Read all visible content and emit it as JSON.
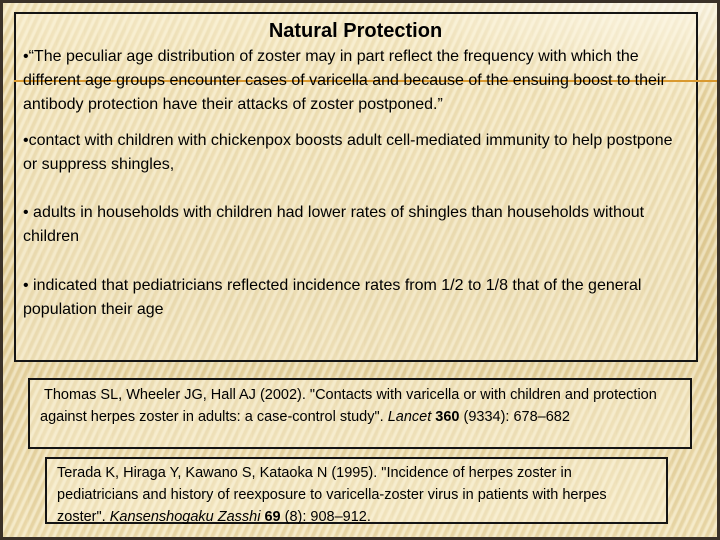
{
  "slide": {
    "title": "Natural Protection",
    "bullets": [
      {
        "text": "•“The peculiar age distribution of zoster may in part reflect the frequency with which the different age groups encounter cases of varicella and because of the ensuing boost to their antibody protection have their attacks of zoster postponed.”"
      },
      {
        "text": "•contact with children with chickenpox boosts adult cell-mediated immunity to help postpone or suppress shingles,"
      },
      {
        "text": "• adults in households with children had lower rates of shingles than households without children"
      },
      {
        "text": "• indicated that pediatricians reflected incidence rates from 1/2 to 1/8 that of the general population their age"
      }
    ],
    "citations": [
      {
        "pre": "Thomas SL, Wheeler JG, Hall AJ (2002). \"Contacts with varicella or with children and protection against herpes zoster in adults: a case-control study\". ",
        "journal": "Lancet ",
        "volume": "360",
        "rest": " (9334): 678–682"
      },
      {
        "pre": "Terada K, Hiraga Y, Kawano S, Kataoka N (1995). \"Incidence of herpes zoster in pediatricians and history of reexposure to varicella-zoster virus in patients with herpes zoster\". ",
        "journal": "Kansenshogaku Zasshi ",
        "volume": "69",
        "rest": " (8): 908–912."
      }
    ],
    "colors": {
      "accent_line": "#d9992f",
      "background": "#e5d099",
      "box_border": "#141414",
      "frame": "#3a3128"
    }
  }
}
